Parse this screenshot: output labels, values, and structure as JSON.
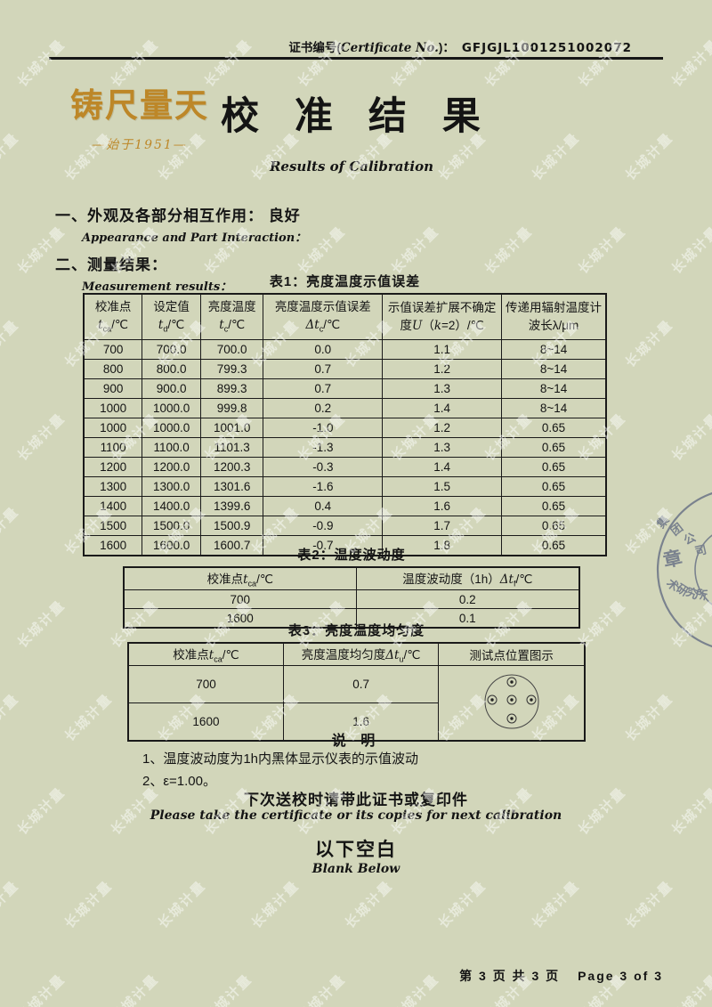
{
  "page": {
    "bg": "#d2d6ba",
    "watermark_text": "长城计量",
    "stamp": {
      "arc_top": "集团公司",
      "center": "章",
      "arc_bottom": "术研究所",
      "color": "#59637e"
    }
  },
  "header": {
    "cert_label_zh": "证书编号(",
    "cert_label_en": "Certificate No.",
    "cert_label_close": ")：",
    "cert_no": "GFJGJL1001251002072"
  },
  "brand": {
    "logo_text": "铸尺量天",
    "logo_sub": "—始于1951—",
    "logo_color": "#bd8728",
    "title": "校 准 结 果",
    "subtitle": "Results of Calibration"
  },
  "sections": [
    {
      "zh": "一、外观及各部分相互作用： 良好",
      "en": "Appearance and Part Interaction："
    },
    {
      "zh": "二、测量结果：",
      "en": "Measurement results："
    }
  ],
  "table1": {
    "title": "表1：亮度温度示值误差",
    "headers": [
      {
        "label": "校准点",
        "sym": {
          "pre": "t",
          "sub": "ca",
          "post": "/℃"
        }
      },
      {
        "label": "设定值",
        "sym": {
          "pre": "t",
          "sub": "d",
          "post": "/℃"
        }
      },
      {
        "label": "亮度温度",
        "sym": {
          "pre": "t",
          "sub": "c",
          "post": "/℃"
        }
      },
      {
        "label": "亮度温度示值误差",
        "sym": {
          "pre": "Δt",
          "sub": "c",
          "post": "/℃"
        }
      },
      {
        "parts": {
          "p1": "示值误差扩展不确定度",
          "u": "U",
          "p2": "（",
          "k": "k",
          "p3": "=2）/℃"
        }
      },
      {
        "label": "传递用辐射温度计波长λ/μm"
      }
    ],
    "rows": [
      [
        "700",
        "700.0",
        "700.0",
        "0.0",
        "1.1",
        "8~14"
      ],
      [
        "800",
        "800.0",
        "799.3",
        "0.7",
        "1.2",
        "8~14"
      ],
      [
        "900",
        "900.0",
        "899.3",
        "0.7",
        "1.3",
        "8~14"
      ],
      [
        "1000",
        "1000.0",
        "999.8",
        "0.2",
        "1.4",
        "8~14"
      ],
      [
        "1000",
        "1000.0",
        "1001.0",
        "-1.0",
        "1.2",
        "0.65"
      ],
      [
        "1100",
        "1100.0",
        "1101.3",
        "-1.3",
        "1.3",
        "0.65"
      ],
      [
        "1200",
        "1200.0",
        "1200.3",
        "-0.3",
        "1.4",
        "0.65"
      ],
      [
        "1300",
        "1300.0",
        "1301.6",
        "-1.6",
        "1.5",
        "0.65"
      ],
      [
        "1400",
        "1400.0",
        "1399.6",
        "0.4",
        "1.6",
        "0.65"
      ],
      [
        "1500",
        "1500.0",
        "1500.9",
        "-0.9",
        "1.7",
        "0.65"
      ],
      [
        "1600",
        "1600.0",
        "1600.7",
        "-0.7",
        "1.8",
        "0.65"
      ]
    ]
  },
  "table2": {
    "title": "表2：温度波动度",
    "col1": {
      "pre": "校准点",
      "t": "t",
      "sub": "ca",
      "post": "/℃"
    },
    "col2": {
      "pre": "温度波动度（1h）",
      "t": "Δt",
      "sub": "f",
      "post": "/℃"
    },
    "rows": [
      [
        "700",
        "0.2"
      ],
      [
        "1600",
        "0.1"
      ]
    ]
  },
  "table3": {
    "title": "表3：亮度温度均匀度",
    "col1": {
      "pre": "校准点",
      "t": "t",
      "sub": "ca",
      "post": "/℃"
    },
    "col2": {
      "pre": "亮度温度均匀度",
      "t": "Δt",
      "sub": "u",
      "post": "/℃"
    },
    "col3": "测试点位置图示",
    "rows": [
      [
        "700",
        "0.7"
      ],
      [
        "1600",
        "1.6"
      ]
    ]
  },
  "notes": {
    "title": "说  明",
    "items": [
      "1、温度波动度为1h内黑体显示仪表的示值波动",
      "2、ε=1.00。"
    ]
  },
  "closing": {
    "zh_notice": "下次送校时请带此证书或复印件",
    "en_notice": "Please take the certificate or its copies for next calibration",
    "zh_blank": "以下空白",
    "en_blank": "Blank Below"
  },
  "footer": {
    "zh": "第 3 页 共 3 页",
    "en": "Page 3 of 3"
  }
}
